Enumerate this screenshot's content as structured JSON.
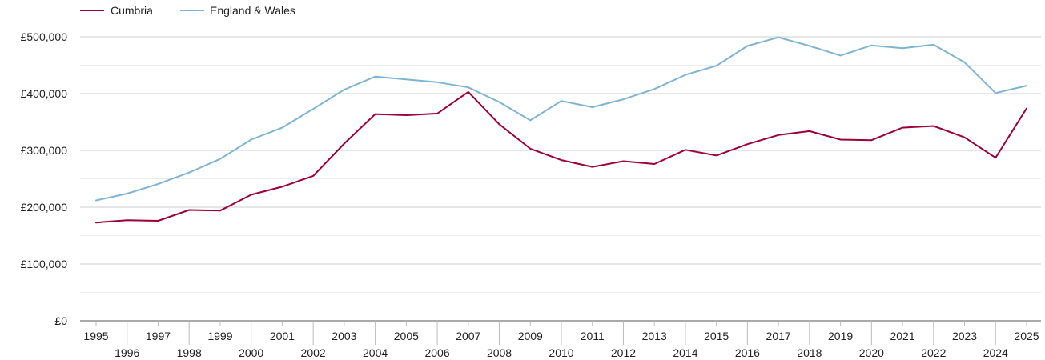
{
  "chart_data": {
    "type": "line",
    "title": "",
    "xlabel": "",
    "ylabel": "",
    "x": [
      1995,
      1996,
      1997,
      1998,
      1999,
      2000,
      2001,
      2002,
      2003,
      2004,
      2005,
      2006,
      2007,
      2008,
      2009,
      2010,
      2011,
      2012,
      2013,
      2014,
      2015,
      2016,
      2017,
      2018,
      2019,
      2020,
      2021,
      2022,
      2023,
      2024,
      2025
    ],
    "xlim": [
      1995,
      2025
    ],
    "ylim": [
      0,
      500000
    ],
    "yticks": [
      {
        "value": 0,
        "label": "£0"
      },
      {
        "value": 100000,
        "label": "£100,000"
      },
      {
        "value": 200000,
        "label": "£200,000"
      },
      {
        "value": 300000,
        "label": "£300,000"
      },
      {
        "value": 400000,
        "label": "£400,000"
      },
      {
        "value": 500000,
        "label": "£500,000"
      }
    ],
    "grid": true,
    "legend_position": "top-left",
    "series": [
      {
        "name": "Cumbria",
        "color": "#990033",
        "values": [
          173000,
          177000,
          176000,
          195000,
          194000,
          222000,
          236000,
          255000,
          312000,
          364000,
          362000,
          365000,
          403000,
          346000,
          303000,
          283000,
          271000,
          281000,
          276000,
          301000,
          291000,
          311000,
          327000,
          334000,
          319000,
          318000,
          340000,
          343000,
          323000,
          287000,
          374000
        ]
      },
      {
        "name": "England & Wales",
        "color": "#7eb4d1",
        "values": [
          212000,
          224000,
          241000,
          261000,
          285000,
          319000,
          340000,
          373000,
          407000,
          430000,
          425000,
          420000,
          411000,
          385000,
          353000,
          387000,
          376000,
          390000,
          408000,
          433000,
          449000,
          484000,
          499000,
          484000,
          467000,
          485000,
          480000,
          486000,
          455000,
          401000,
          414000
        ]
      }
    ]
  }
}
